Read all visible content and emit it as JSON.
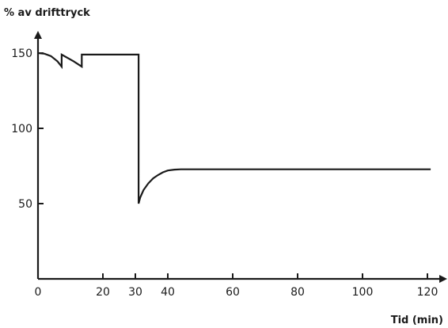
{
  "chart_data": {
    "type": "line",
    "ylabel": "% av drifttryck",
    "xlabel": "Tid (min)",
    "xlim": [
      0,
      122
    ],
    "ylim": [
      0,
      160
    ],
    "xticks": [
      0,
      20,
      30,
      40,
      60,
      80,
      100,
      120
    ],
    "yticks": [
      50,
      100,
      150
    ],
    "grid": false,
    "legend": "none",
    "line_color": "#1a1a1a",
    "series": [
      {
        "points": [
          [
            0,
            150
          ],
          [
            2,
            149.6
          ],
          [
            4,
            148
          ],
          [
            6,
            144.5
          ],
          [
            7.3,
            141
          ],
          [
            7.3,
            149
          ],
          [
            11,
            144.5
          ],
          [
            13.5,
            141
          ],
          [
            13.5,
            149
          ],
          [
            31,
            149
          ],
          [
            31,
            50
          ],
          [
            31.5,
            54
          ],
          [
            32.5,
            59
          ],
          [
            34,
            63.5
          ],
          [
            35.5,
            66.8
          ],
          [
            37,
            69
          ],
          [
            38.5,
            70.8
          ],
          [
            40,
            72
          ],
          [
            42,
            72.6
          ],
          [
            44,
            72.8
          ],
          [
            121,
            72.8
          ]
        ]
      }
    ]
  }
}
